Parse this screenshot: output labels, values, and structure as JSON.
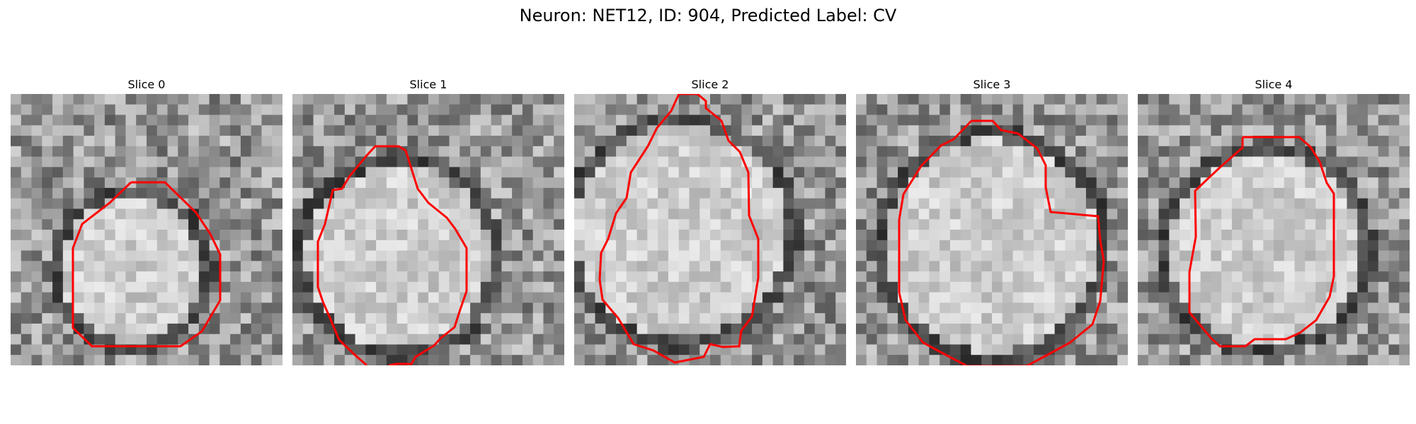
{
  "figure": {
    "title": "Neuron: NET12, ID: 904, Predicted Label: CV",
    "outline_color": "#ff0000"
  },
  "panels": [
    {
      "title": "Slice 0",
      "contour_color": "#ff0000"
    },
    {
      "title": "Slice 1",
      "contour_color": "#ff0000"
    },
    {
      "title": "Slice 2",
      "contour_color": "#ff0000"
    },
    {
      "title": "Slice 3",
      "contour_color": "#ff0000"
    },
    {
      "title": "Slice 4",
      "contour_color": "#ff0000"
    }
  ]
}
